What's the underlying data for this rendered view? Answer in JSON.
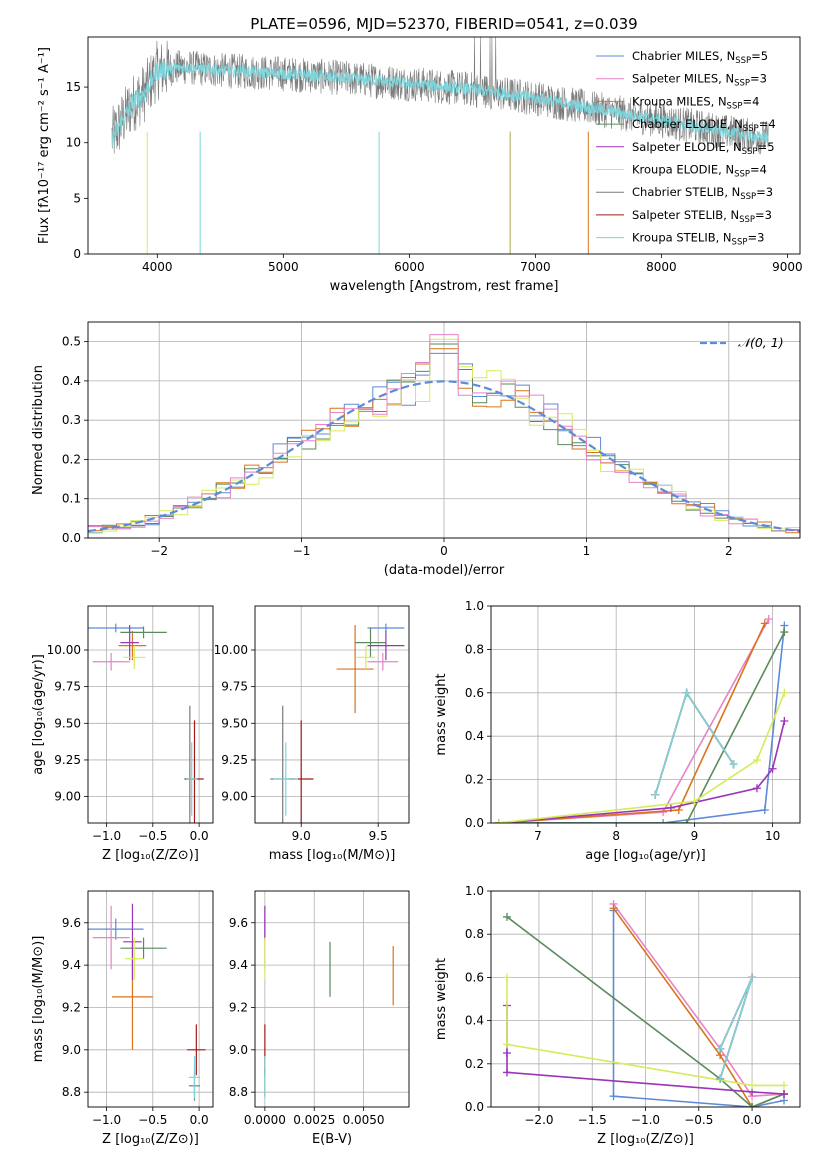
{
  "figure_title": "PLATE=0596, MJD=52370, FIBERID=0541, z=0.039",
  "colors": {
    "Chabrier MILES": "#5b8bd9",
    "Salpeter MILES": "#e882c8",
    "Kroupa MILES": "#d9731c",
    "Chabrier ELODIE": "#5a8a5e",
    "Salpeter ELODIE": "#9b34b8",
    "Kroupa ELODIE": "#d6eb5a",
    "Chabrier STELIB": "#7a7a7a",
    "Salpeter STELIB": "#a31a1a",
    "Kroupa STELIB": "#7dd6dc",
    "normal_fit": "#5b8bd9"
  },
  "chart_data": [
    {
      "id": "spectrum",
      "type": "line",
      "title": "PLATE=0596, MJD=52370, FIBERID=0541, z=0.039",
      "xlabel": "wavelength [Angstrom, rest frame]",
      "ylabel": "Flux [fλ10⁻¹⁷ erg cm⁻² s⁻¹ A⁻¹]",
      "xlim": [
        3450,
        9100
      ],
      "ylim": [
        0,
        19.5
      ],
      "xticks": [
        4000,
        5000,
        6000,
        7000,
        8000,
        9000
      ],
      "yticks": [
        0,
        5,
        10,
        15
      ],
      "grid": false,
      "legend_position": "upper-right",
      "legend": [
        {
          "label": "Chabrier MILES, N",
          "sub": "SSP",
          "suffix": "=5",
          "color": "#5b8bd9"
        },
        {
          "label": "Salpeter MILES, N",
          "sub": "SSP",
          "suffix": "=3",
          "color": "#e882c8"
        },
        {
          "label": "Kroupa MILES, N",
          "sub": "SSP",
          "suffix": "=4",
          "color": "#d9731c"
        },
        {
          "label": "Chabrier ELODIE, N",
          "sub": "SSP",
          "suffix": "=4",
          "color": "#5a8a5e"
        },
        {
          "label": "Salpeter ELODIE, N",
          "sub": "SSP",
          "suffix": "=5",
          "color": "#9b34b8"
        },
        {
          "label": "Kroupa ELODIE, N",
          "sub": "SSP",
          "suffix": "=4",
          "color": "#d6eb5a"
        },
        {
          "label": "Chabrier STELIB, N",
          "sub": "SSP",
          "suffix": "=3",
          "color": "#7a7a7a"
        },
        {
          "label": "Salpeter STELIB, N",
          "sub": "SSP",
          "suffix": "=3",
          "color": "#a31a1a"
        },
        {
          "label": "Kroupa STELIB, N",
          "sub": "SSP",
          "suffix": "=3",
          "color": "#7dd6dc"
        }
      ],
      "series": [
        {
          "name": "Data",
          "color": "#7a7a7a",
          "x_range": [
            3640,
            8850
          ],
          "envelope": [
            [
              3640,
              10.5
            ],
            [
              3700,
              11.5
            ],
            [
              3800,
              13.5
            ],
            [
              3900,
              14.5
            ],
            [
              4000,
              16.5
            ],
            [
              4200,
              16.8
            ],
            [
              4500,
              16.5
            ],
            [
              5000,
              16.2
            ],
            [
              5500,
              15.8
            ],
            [
              6000,
              15.3
            ],
            [
              6500,
              14.8
            ],
            [
              7000,
              14.0
            ],
            [
              7500,
              13.0
            ],
            [
              8000,
              12.0
            ],
            [
              8500,
              11.0
            ],
            [
              8850,
              10.4
            ]
          ]
        },
        {
          "name": "Kroupa STELIB",
          "color": "#7dd6dc",
          "x_range": [
            3640,
            8850
          ],
          "envelope": [
            [
              3640,
              10.5
            ],
            [
              3700,
              11.5
            ],
            [
              3800,
              13.5
            ],
            [
              3900,
              14.5
            ],
            [
              4000,
              16.5
            ],
            [
              4200,
              16.8
            ],
            [
              4500,
              16.5
            ],
            [
              5000,
              16.2
            ],
            [
              5500,
              15.8
            ],
            [
              6000,
              15.3
            ],
            [
              6500,
              14.8
            ],
            [
              7000,
              14.0
            ],
            [
              7500,
              13.0
            ],
            [
              8000,
              12.0
            ],
            [
              8500,
              11.0
            ],
            [
              8850,
              10.4
            ]
          ]
        }
      ]
    },
    {
      "id": "residuals",
      "type": "histogram",
      "xlabel": "(data-model)/error",
      "ylabel": "Normed distribution",
      "xlim": [
        -2.5,
        2.5
      ],
      "ylim": [
        0,
        0.55
      ],
      "xticks": [
        -2,
        -1,
        0,
        1,
        2
      ],
      "yticks": [
        0.0,
        0.1,
        0.2,
        0.3,
        0.4,
        0.5
      ],
      "grid": true,
      "legend_position": "upper-right",
      "legend": [
        {
          "label": "𝒩(0, 1)",
          "color": "#5b8bd9",
          "style": "dashed"
        }
      ],
      "bin_width": 0.1,
      "bin_start": -2.5,
      "series": [
        {
          "name": "Chabrier MILES",
          "color": "#5b8bd9"
        },
        {
          "name": "Kroupa MILES",
          "color": "#d9731c"
        },
        {
          "name": "Chabrier ELODIE",
          "color": "#5a8a5e"
        },
        {
          "name": "Kroupa ELODIE",
          "color": "#d6eb5a"
        },
        {
          "name": "Salpeter MILES",
          "color": "#e882c8"
        }
      ]
    },
    {
      "id": "age_vs_z",
      "type": "errorbar",
      "xlabel": "Z [log₁₀(Z/Z⊙)]",
      "ylabel": "age  [log₁₀(age/yr)]",
      "xlim": [
        -1.2,
        0.15
      ],
      "ylim": [
        8.82,
        10.3
      ],
      "xticks": [
        -1.0,
        -0.5,
        0.0
      ],
      "yticks": [
        9.0,
        9.25,
        9.5,
        9.75,
        10.0
      ],
      "grid": true,
      "points": [
        {
          "x": -0.9,
          "y": 10.15,
          "xerr": 0.3,
          "yerr": 0.03,
          "color": "#5b8bd9"
        },
        {
          "x": -0.95,
          "y": 9.92,
          "xerr": 0.2,
          "yerr": 0.06,
          "color": "#e882c8"
        },
        {
          "x": -0.72,
          "y": 10.03,
          "xerr": 0.15,
          "yerr": 0.1,
          "color": "#d9731c"
        },
        {
          "x": -0.6,
          "y": 10.12,
          "xerr": 0.25,
          "yerr": 0.04,
          "color": "#5a8a5e"
        },
        {
          "x": -0.75,
          "y": 10.05,
          "xerr": 0.1,
          "yerr": 0.12,
          "color": "#9b34b8"
        },
        {
          "x": -0.7,
          "y": 9.95,
          "xerr": 0.12,
          "yerr": 0.08,
          "color": "#d6eb5a"
        },
        {
          "x": -0.1,
          "y": 9.12,
          "xerr": 0.06,
          "yerr": 0.5,
          "color": "#7a7a7a"
        },
        {
          "x": -0.05,
          "y": 9.12,
          "xerr": 0.1,
          "yerr": 0.4,
          "color": "#a31a1a"
        },
        {
          "x": -0.08,
          "y": 9.12,
          "xerr": 0.06,
          "yerr": 0.25,
          "color": "#7dd6dc"
        }
      ]
    },
    {
      "id": "age_vs_mass",
      "type": "errorbar",
      "xlabel": "mass [log₁₀(M/M⊙)]",
      "ylabel": "",
      "xlim": [
        8.7,
        9.7
      ],
      "ylim": [
        8.82,
        10.3
      ],
      "xticks": [
        9.0,
        9.5
      ],
      "yticks": [
        9.0,
        9.25,
        9.5,
        9.75,
        10.0
      ],
      "grid": true,
      "points": [
        {
          "x": 9.55,
          "y": 10.15,
          "xerr": 0.12,
          "yerr": 0.03,
          "color": "#5b8bd9"
        },
        {
          "x": 9.53,
          "y": 9.92,
          "xerr": 0.1,
          "yerr": 0.06,
          "color": "#e882c8"
        },
        {
          "x": 9.35,
          "y": 9.87,
          "xerr": 0.12,
          "yerr": 0.3,
          "color": "#d9731c"
        },
        {
          "x": 9.45,
          "y": 10.05,
          "xerr": 0.1,
          "yerr": 0.1,
          "color": "#5a8a5e"
        },
        {
          "x": 9.55,
          "y": 10.03,
          "xerr": 0.12,
          "yerr": 0.1,
          "color": "#9b34b8"
        },
        {
          "x": 9.42,
          "y": 9.95,
          "xerr": 0.06,
          "yerr": 0.08,
          "color": "#d6eb5a"
        },
        {
          "x": 8.88,
          "y": 9.12,
          "xerr": 0.08,
          "yerr": 0.5,
          "color": "#7a7a7a"
        },
        {
          "x": 9.0,
          "y": 9.12,
          "xerr": 0.08,
          "yerr": 0.4,
          "color": "#a31a1a"
        },
        {
          "x": 8.9,
          "y": 9.12,
          "xerr": 0.08,
          "yerr": 0.25,
          "color": "#7dd6dc"
        }
      ]
    },
    {
      "id": "weight_vs_age",
      "type": "line",
      "xlabel": "age  [log₁₀(age/yr)]",
      "ylabel": "mass weight",
      "xlim": [
        6.4,
        10.35
      ],
      "ylim": [
        0,
        1.0
      ],
      "xticks": [
        7,
        8,
        9,
        10
      ],
      "yticks": [
        0.0,
        0.2,
        0.4,
        0.6,
        0.8,
        1.0
      ],
      "grid": true,
      "series": [
        {
          "name": "Chabrier MILES",
          "color": "#5b8bd9",
          "x": [
            6.5,
            8.6,
            9.9,
            10.15
          ],
          "y": [
            0.0,
            0.0,
            0.06,
            0.91
          ]
        },
        {
          "name": "Salpeter MILES",
          "color": "#e882c8",
          "x": [
            6.5,
            8.6,
            9.95
          ],
          "y": [
            0.0,
            0.05,
            0.94
          ]
        },
        {
          "name": "Kroupa MILES",
          "color": "#d9731c",
          "x": [
            6.5,
            8.8,
            9.9
          ],
          "y": [
            0.0,
            0.06,
            0.92
          ]
        },
        {
          "name": "Chabrier ELODIE",
          "color": "#5a8a5e",
          "x": [
            6.5,
            8.9,
            10.15
          ],
          "y": [
            0.0,
            0.0,
            0.88
          ]
        },
        {
          "name": "Salpeter ELODIE",
          "color": "#9b34b8",
          "x": [
            6.5,
            8.7,
            9.8,
            10.0,
            10.15
          ],
          "y": [
            0.0,
            0.07,
            0.16,
            0.25,
            0.47
          ]
        },
        {
          "name": "Kroupa ELODIE",
          "color": "#d6eb5a",
          "x": [
            6.5,
            9.0,
            9.8,
            10.15
          ],
          "y": [
            0.0,
            0.1,
            0.29,
            0.6
          ]
        },
        {
          "name": "Chabrier STELIB",
          "color": "#7a7a7a",
          "x": [
            8.5,
            8.9,
            9.5
          ],
          "y": [
            0.13,
            0.6,
            0.27
          ]
        },
        {
          "name": "Salpeter STELIB",
          "color": "#a31a1a",
          "x": [
            8.5,
            8.9,
            9.5
          ],
          "y": [
            0.13,
            0.6,
            0.27
          ]
        },
        {
          "name": "Kroupa STELIB",
          "color": "#7dd6dc",
          "x": [
            8.5,
            8.9,
            9.5
          ],
          "y": [
            0.13,
            0.6,
            0.27
          ]
        }
      ]
    },
    {
      "id": "mass_vs_z",
      "type": "errorbar",
      "xlabel": "Z [log₁₀(Z/Z⊙)]",
      "ylabel": "mass [log₁₀(M/M⊙)]",
      "xlim": [
        -1.2,
        0.15
      ],
      "ylim": [
        8.73,
        9.75
      ],
      "xticks": [
        -1.0,
        -0.5,
        0.0
      ],
      "yticks": [
        8.8,
        9.0,
        9.2,
        9.4,
        9.6
      ],
      "grid": true,
      "points": [
        {
          "x": -0.9,
          "y": 9.57,
          "xerr": 0.3,
          "yerr": 0.05,
          "color": "#5b8bd9"
        },
        {
          "x": -0.95,
          "y": 9.53,
          "xerr": 0.2,
          "yerr": 0.15,
          "color": "#e882c8"
        },
        {
          "x": -0.72,
          "y": 9.25,
          "xerr": 0.22,
          "yerr": 0.25,
          "color": "#d9731c"
        },
        {
          "x": -0.6,
          "y": 9.48,
          "xerr": 0.25,
          "yerr": 0.05,
          "color": "#5a8a5e"
        },
        {
          "x": -0.72,
          "y": 9.51,
          "xerr": 0.1,
          "yerr": 0.18,
          "color": "#9b34b8"
        },
        {
          "x": -0.7,
          "y": 9.43,
          "xerr": 0.1,
          "yerr": 0.1,
          "color": "#d6eb5a"
        },
        {
          "x": -0.05,
          "y": 8.83,
          "xerr": 0.06,
          "yerr": 0.07,
          "color": "#7a7a7a"
        },
        {
          "x": -0.03,
          "y": 9.0,
          "xerr": 0.1,
          "yerr": 0.12,
          "color": "#a31a1a"
        },
        {
          "x": -0.05,
          "y": 8.87,
          "xerr": 0.06,
          "yerr": 0.1,
          "color": "#7dd6dc"
        }
      ]
    },
    {
      "id": "mass_vs_ebv",
      "type": "errorbar",
      "xlabel": "E(B-V)",
      "ylabel": "",
      "xlim": [
        -0.0005,
        0.0073
      ],
      "ylim": [
        8.73,
        9.75
      ],
      "xticks": [
        0.0,
        0.0025,
        0.005
      ],
      "xtick_labels": [
        "0.0000",
        "0.0025",
        "0.0050"
      ],
      "yticks": [
        8.8,
        9.0,
        9.2,
        9.4,
        9.6
      ],
      "grid": true,
      "points": [
        {
          "x": 0.0,
          "y": 9.57,
          "xerr": 0,
          "yerr": 0.05,
          "color": "#5b8bd9"
        },
        {
          "x": 0.0,
          "y": 9.53,
          "xerr": 0,
          "yerr": 0.15,
          "color": "#e882c8"
        },
        {
          "x": 0.0065,
          "y": 9.35,
          "xerr": 0,
          "yerr": 0.14,
          "color": "#d9731c"
        },
        {
          "x": 0.0033,
          "y": 9.38,
          "xerr": 0,
          "yerr": 0.13,
          "color": "#5a8a5e"
        },
        {
          "x": 0.0,
          "y": 9.6,
          "xerr": 0,
          "yerr": 0.08,
          "color": "#9b34b8"
        },
        {
          "x": 0.0,
          "y": 9.43,
          "xerr": 0,
          "yerr": 0.1,
          "color": "#d6eb5a"
        },
        {
          "x": 0.0,
          "y": 8.85,
          "xerr": 0,
          "yerr": 0.07,
          "color": "#7a7a7a"
        },
        {
          "x": 0.0,
          "y": 9.0,
          "xerr": 0,
          "yerr": 0.12,
          "color": "#a31a1a"
        },
        {
          "x": 0.0,
          "y": 8.87,
          "xerr": 0,
          "yerr": 0.1,
          "color": "#7dd6dc"
        }
      ]
    },
    {
      "id": "weight_vs_z",
      "type": "line",
      "xlabel": "Z [log₁₀(Z/Z⊙)]",
      "ylabel": "mass weight",
      "xlim": [
        -2.45,
        0.45
      ],
      "ylim": [
        0,
        1.0
      ],
      "xticks": [
        -2.0,
        -1.5,
        -1.0,
        -0.5,
        0.0
      ],
      "yticks": [
        0.0,
        0.2,
        0.4,
        0.6,
        0.8,
        1.0
      ],
      "grid": true,
      "series": [
        {
          "name": "Chabrier MILES",
          "color": "#5b8bd9",
          "x": [
            -1.3,
            -1.3,
            0.0,
            0.3
          ],
          "y": [
            0.91,
            0.05,
            0.0,
            0.03
          ]
        },
        {
          "name": "Salpeter MILES",
          "color": "#e882c8",
          "x": [
            -1.3,
            -0.3,
            0.0,
            0.3
          ],
          "y": [
            0.94,
            0.27,
            0.05,
            0.06
          ]
        },
        {
          "name": "Kroupa MILES",
          "color": "#d9731c",
          "x": [
            -1.3,
            -0.3,
            0.0,
            0.3
          ],
          "y": [
            0.92,
            0.24,
            0.0,
            0.06
          ]
        },
        {
          "name": "Chabrier ELODIE",
          "color": "#5a8a5e",
          "x": [
            -2.3,
            -0.3,
            0.0,
            0.3
          ],
          "y": [
            0.88,
            0.13,
            0.0,
            0.06
          ]
        },
        {
          "name": "Salpeter ELODIE",
          "color": "#9b34b8",
          "x": [
            -2.3,
            -2.3,
            -2.3,
            0.0,
            0.3
          ],
          "y": [
            0.47,
            0.25,
            0.16,
            0.07,
            0.06
          ]
        },
        {
          "name": "Kroupa ELODIE",
          "color": "#d6eb5a",
          "x": [
            -2.3,
            -2.3,
            0.0,
            0.3
          ],
          "y": [
            0.6,
            0.29,
            0.1,
            0.1
          ]
        },
        {
          "name": "Chabrier STELIB",
          "color": "#7a7a7a",
          "x": [
            -0.3,
            0.0,
            -0.3
          ],
          "y": [
            0.27,
            0.6,
            0.13
          ]
        },
        {
          "name": "Salpeter STELIB",
          "color": "#a31a1a",
          "x": [
            -0.3,
            0.0,
            -0.3
          ],
          "y": [
            0.27,
            0.6,
            0.13
          ]
        },
        {
          "name": "Kroupa STELIB",
          "color": "#7dd6dc",
          "x": [
            -0.3,
            0.0,
            -0.3
          ],
          "y": [
            0.27,
            0.6,
            0.13
          ]
        }
      ]
    }
  ]
}
